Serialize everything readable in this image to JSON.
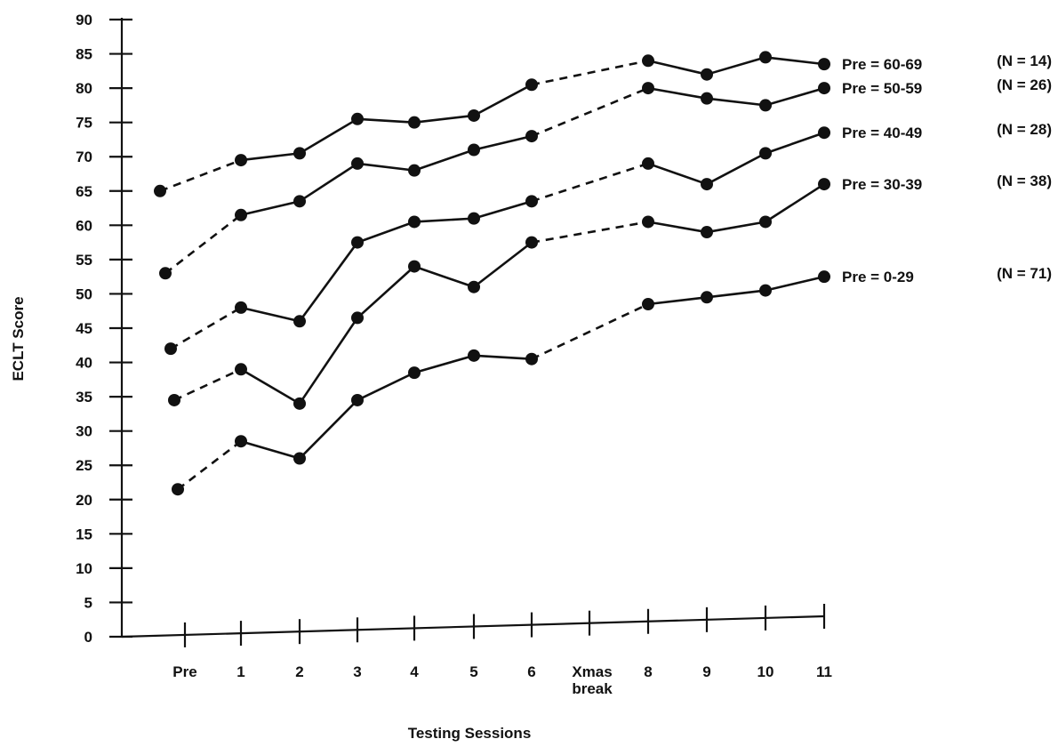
{
  "chart_data": {
    "type": "line",
    "title": "",
    "xlabel": "Testing Sessions",
    "ylabel": "ECLT Score",
    "ylim": [
      0,
      90
    ],
    "yticks": [
      0,
      5,
      10,
      15,
      20,
      25,
      30,
      35,
      40,
      45,
      50,
      55,
      60,
      65,
      70,
      75,
      80,
      85,
      90
    ],
    "categories": [
      "Pre",
      "1",
      "2",
      "3",
      "4",
      "5",
      "6",
      "Xmas break",
      "8",
      "9",
      "10",
      "11"
    ],
    "x_tick_labels": [
      {
        "line1": "Pre",
        "line2": ""
      },
      {
        "line1": "1",
        "line2": ""
      },
      {
        "line1": "2",
        "line2": ""
      },
      {
        "line1": "3",
        "line2": ""
      },
      {
        "line1": "4",
        "line2": ""
      },
      {
        "line1": "5",
        "line2": ""
      },
      {
        "line1": "6",
        "line2": ""
      },
      {
        "line1": "Xmas",
        "line2": "break"
      },
      {
        "line1": "8",
        "line2": ""
      },
      {
        "line1": "9",
        "line2": ""
      },
      {
        "line1": "10",
        "line2": ""
      },
      {
        "line1": "11",
        "line2": ""
      }
    ],
    "series": [
      {
        "name": "Pre = 60-69",
        "n_label": "(N = 14)",
        "values": [
          65,
          69.5,
          70.5,
          75.5,
          75,
          76,
          80.5,
          null,
          84,
          82,
          84.5,
          83.5
        ],
        "dashed_segments": [
          0,
          6
        ]
      },
      {
        "name": "Pre = 50-59",
        "n_label": "(N = 26)",
        "values": [
          53,
          61.5,
          63.5,
          69,
          68,
          71,
          73,
          null,
          80,
          78.5,
          77.5,
          80
        ],
        "dashed_segments": [
          0,
          6
        ]
      },
      {
        "name": "Pre = 40-49",
        "n_label": "(N = 28)",
        "values": [
          42,
          48,
          46,
          57.5,
          60.5,
          61,
          63.5,
          null,
          69,
          66,
          70.5,
          73.5
        ],
        "dashed_segments": [
          0,
          6
        ]
      },
      {
        "name": "Pre = 30-39",
        "n_label": "(N = 38)",
        "values": [
          34.5,
          39,
          34,
          46.5,
          54,
          51,
          57.5,
          null,
          60.5,
          59,
          60.5,
          66
        ],
        "dashed_segments": [
          0,
          6
        ]
      },
      {
        "name": "Pre = 0-29",
        "n_label": "(N = 71)",
        "values": [
          21.5,
          28.5,
          26,
          34.5,
          38.5,
          41,
          40.5,
          null,
          48.5,
          49.5,
          50.5,
          52.5
        ],
        "dashed_segments": [
          0,
          6
        ]
      }
    ],
    "grid": false,
    "legend": "none"
  }
}
